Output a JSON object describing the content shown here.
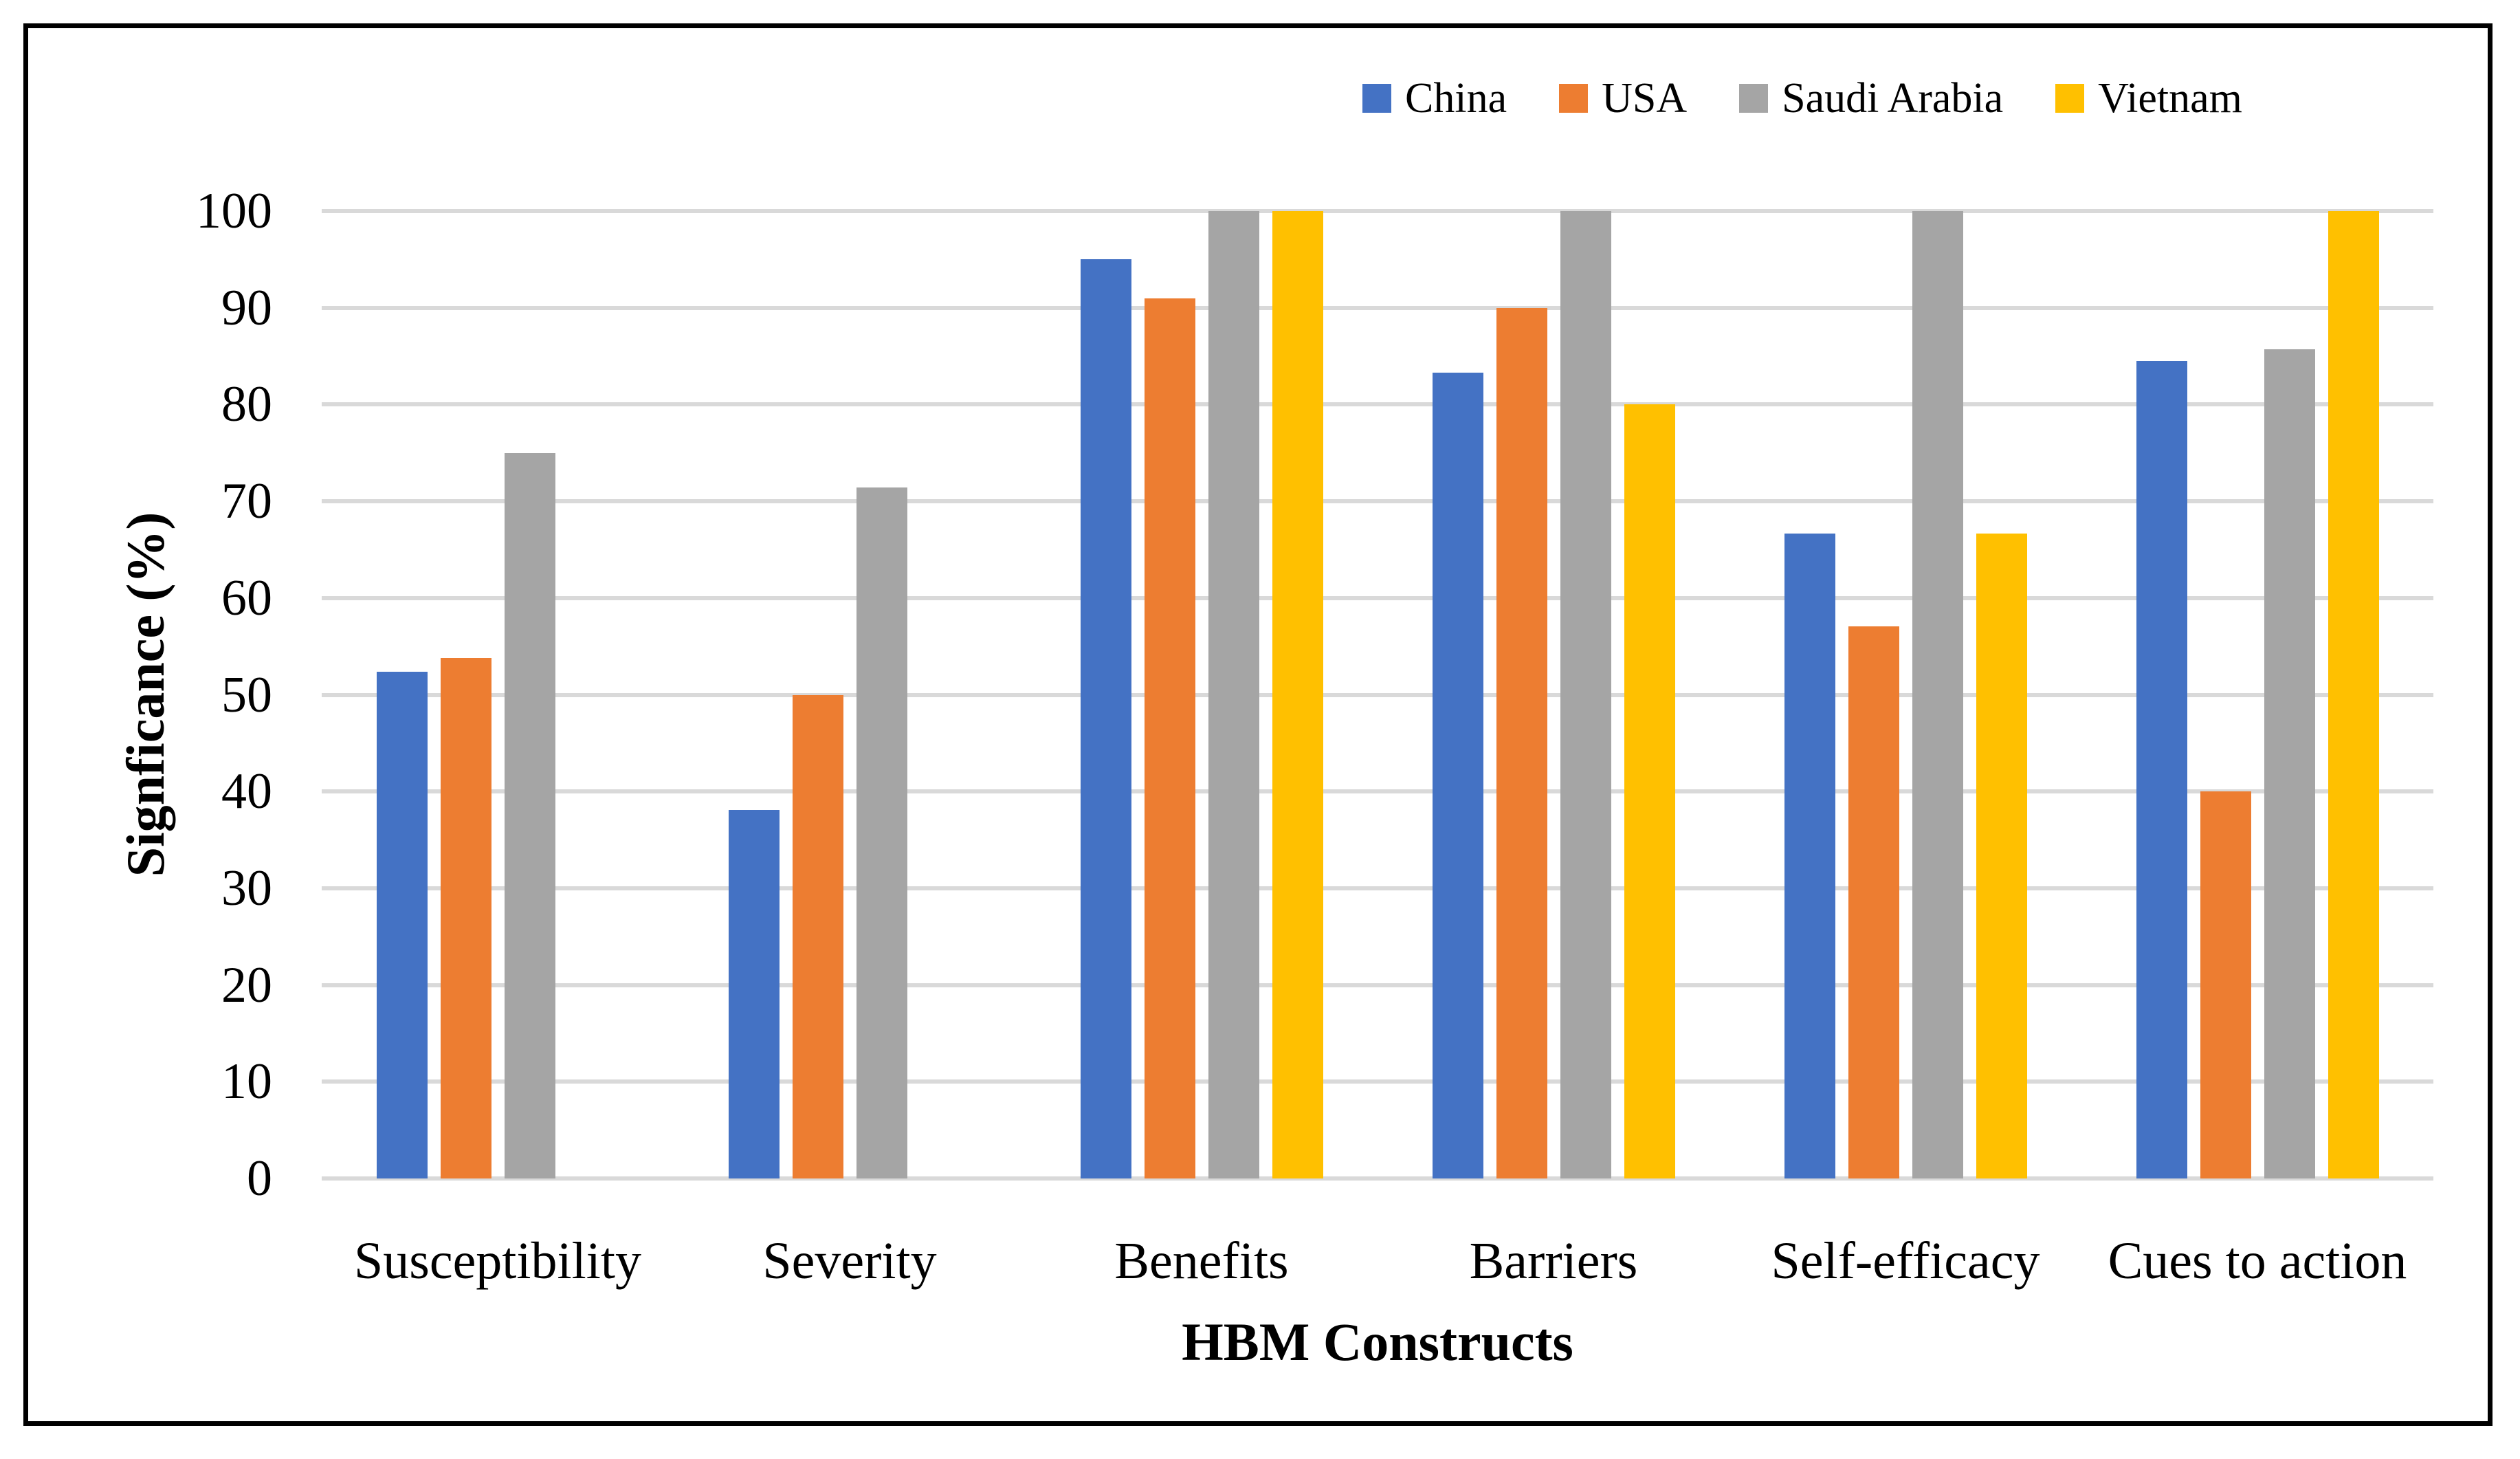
{
  "figure": {
    "background_color": "#ffffff",
    "border_color": "#000000"
  },
  "chart_data": {
    "type": "bar",
    "title": "",
    "xlabel": "HBM Constructs",
    "ylabel": "Signficance (%)",
    "categories": [
      "Susceptibility",
      "Severity",
      "Benefits",
      "Barriers",
      "Self-efficacy",
      "Cues to action"
    ],
    "series": [
      {
        "name": "China",
        "color": "#4472C4",
        "values": [
          52.4,
          38.1,
          95,
          83.3,
          66.7,
          84.5
        ]
      },
      {
        "name": "USA",
        "color": "#ED7D31",
        "values": [
          53.8,
          50,
          91,
          90,
          57.1,
          40
        ]
      },
      {
        "name": "Saudi Arabia",
        "color": "#A5A5A5",
        "values": [
          75,
          71.4,
          100,
          100,
          100,
          85.7
        ]
      },
      {
        "name": "Vietnam",
        "color": "#FFC000",
        "values": [
          null,
          null,
          100,
          80,
          66.7,
          100
        ]
      }
    ],
    "ylim": [
      0,
      100
    ],
    "yticks": [
      0,
      10,
      20,
      30,
      40,
      50,
      60,
      70,
      80,
      90,
      100
    ],
    "grid": true,
    "gridline_color": "#D9D9D9",
    "legend_position": "top-right"
  }
}
